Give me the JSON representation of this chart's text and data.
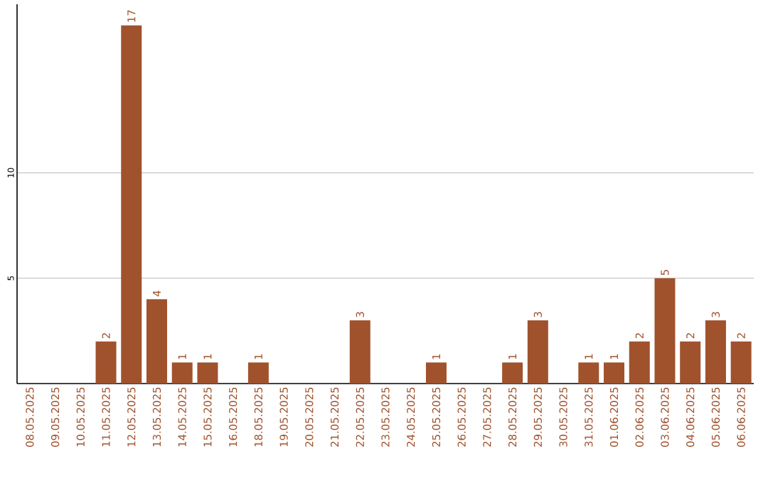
{
  "chart_data": {
    "type": "bar",
    "categories": [
      "08.05.2025",
      "09.05.2025",
      "10.05.2025",
      "11.05.2025",
      "12.05.2025",
      "13.05.2025",
      "14.05.2025",
      "15.05.2025",
      "16.05.2025",
      "18.05.2025",
      "19.05.2025",
      "20.05.2025",
      "21.05.2025",
      "22.05.2025",
      "23.05.2025",
      "24.05.2025",
      "25.05.2025",
      "26.05.2025",
      "27.05.2025",
      "28.05.2025",
      "29.05.2025",
      "30.05.2025",
      "31.05.2025",
      "01.06.2025",
      "02.06.2025",
      "03.06.2025",
      "04.06.2025",
      "05.06.2025",
      "06.06.2025"
    ],
    "values": [
      0,
      0,
      0,
      2,
      17,
      4,
      1,
      1,
      0,
      1,
      0,
      0,
      0,
      3,
      0,
      0,
      1,
      0,
      0,
      1,
      3,
      0,
      1,
      1,
      2,
      5,
      2,
      3,
      2
    ],
    "value_labels": [
      null,
      null,
      null,
      "2",
      "17",
      "4",
      "1",
      "1",
      null,
      "1",
      null,
      null,
      null,
      "3",
      null,
      null,
      "1",
      null,
      null,
      "1",
      "3",
      null,
      "1",
      "1",
      "2",
      "5",
      "2",
      "3",
      "2"
    ],
    "color": "#a0522d",
    "ylim": [
      0,
      18
    ],
    "yticks": [
      5,
      10
    ],
    "grid": "y"
  }
}
